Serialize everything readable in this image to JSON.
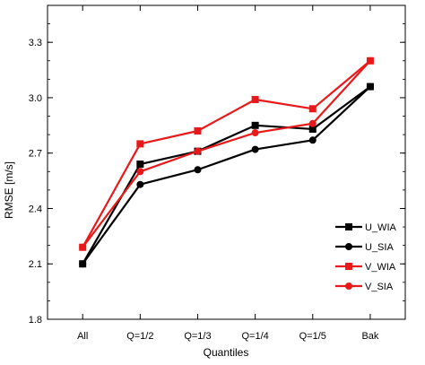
{
  "chart_data": {
    "type": "line",
    "title": "",
    "xlabel": "Quantiles",
    "ylabel": "RMSE [m/s]",
    "categories": [
      "All",
      "Q=1/2",
      "Q=1/3",
      "Q=1/4",
      "Q=1/5",
      "Bak"
    ],
    "ylim": [
      1.8,
      3.5
    ],
    "yticks": [
      1.8,
      2.1,
      2.4,
      2.7,
      3.0,
      3.3
    ],
    "ytick_labels": [
      "1.8",
      "2.1",
      "2.4",
      "2.7",
      "3.0",
      "3.3"
    ],
    "grid": false,
    "legend_position": "lower-right",
    "series": [
      {
        "name": "U_WIA",
        "color": "#000000",
        "marker": "square",
        "values": [
          2.1,
          2.64,
          2.71,
          2.85,
          2.83,
          3.06
        ]
      },
      {
        "name": "U_SIA",
        "color": "#000000",
        "marker": "circle",
        "values": [
          2.1,
          2.53,
          2.61,
          2.72,
          2.77,
          3.06
        ]
      },
      {
        "name": "V_WIA",
        "color": "#e8191a",
        "marker": "square",
        "values": [
          2.19,
          2.75,
          2.82,
          2.99,
          2.94,
          3.2
        ]
      },
      {
        "name": "V_SIA",
        "color": "#e8191a",
        "marker": "circle",
        "values": [
          2.19,
          2.6,
          2.71,
          2.81,
          2.86,
          3.2
        ]
      }
    ]
  }
}
